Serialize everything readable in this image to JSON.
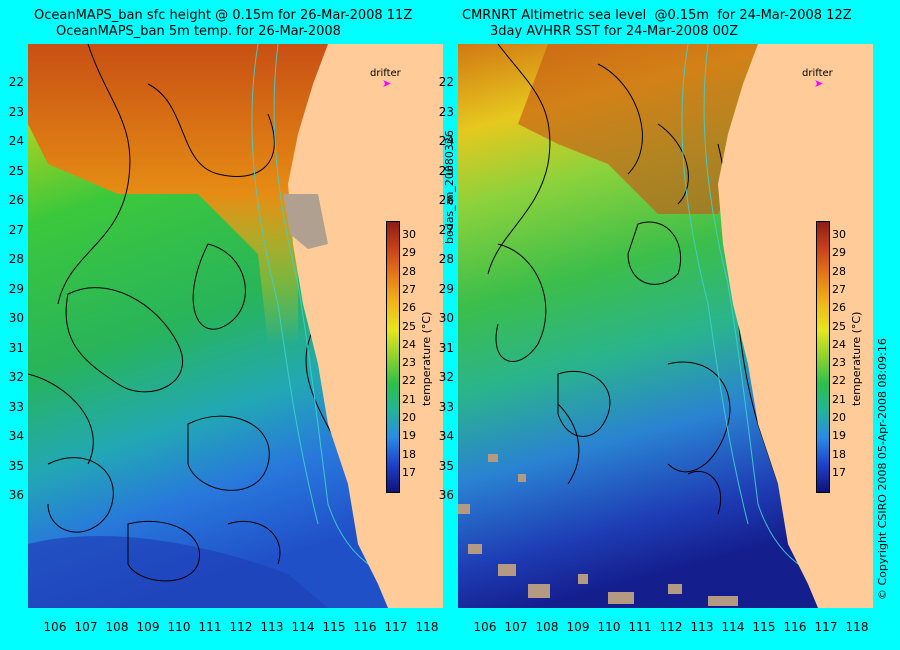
{
  "left_panel": {
    "title_line1": "OceanMAPS_ban sfc height @ 0.15m for 26-Mar-2008 11Z",
    "title_line2": "OceanMAPS_ban 5m temp. for 26-Mar-2008",
    "drifter_label": "drifter"
  },
  "right_panel": {
    "title_line1": "CMRNRT Altimetric sea level  @0.15m  for 24-Mar-2008 12Z",
    "title_line2": "3day AVHRR SST for 24-Mar-2008 00Z",
    "drifter_label": "drifter"
  },
  "colorbar": {
    "label": "temperature (°C)",
    "ticks": [
      "30",
      "29",
      "28",
      "27",
      "26",
      "25",
      "24",
      "23",
      "22",
      "21",
      "20",
      "19",
      "18",
      "17"
    ]
  },
  "axes": {
    "lat_ticks": [
      "22",
      "23",
      "24",
      "25",
      "26",
      "27",
      "28",
      "29",
      "30",
      "31",
      "32",
      "33",
      "34",
      "35",
      "36"
    ],
    "lon_ticks": [
      "106",
      "107",
      "108",
      "109",
      "110",
      "111",
      "112",
      "113",
      "114",
      "115",
      "116",
      "117",
      "118"
    ]
  },
  "side_labels": {
    "run_id": "bodas_an_20080326",
    "copyright": "© Copyright CSIRO 2008    05-Apr-2008 08:09:16"
  },
  "colors": {
    "background": "#00ffff",
    "land": "#ffcc99",
    "drifter": "#ff00ff",
    "contour": "#000000",
    "coastline_isobath": "#40d0d0"
  }
}
